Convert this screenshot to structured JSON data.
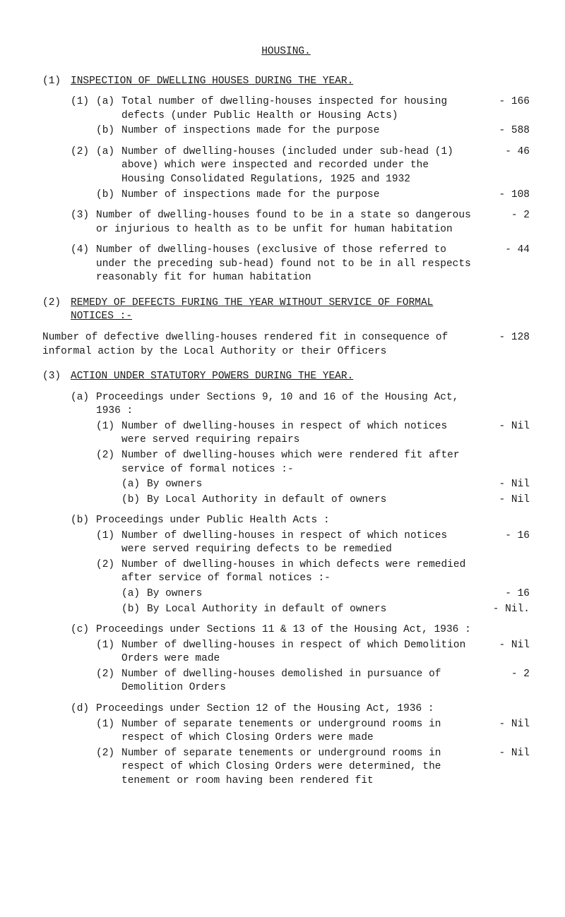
{
  "heading": "HOUSING.",
  "s1": {
    "num": "(1)",
    "title": "INSPECTION OF DWELLING HOUSES DURING THE YEAR.",
    "items": [
      {
        "num": "(1)",
        "a_label": "(a)",
        "a_text": "Total number of dwelling-houses inspected for housing defects (under Public Health or Housing Acts)",
        "a_val": "- 166",
        "b_label": "(b)",
        "b_text": "Number of inspections made for the purpose",
        "b_val": "- 588"
      },
      {
        "num": "(2)",
        "a_label": "(a)",
        "a_text": "Number of dwelling-houses (included under sub-head (1) above) which were inspected and recorded under the Housing Consolidated Regulations, 1925 and 1932",
        "a_val": "-  46",
        "b_label": "(b)",
        "b_text": "Number of inspections made for the purpose",
        "b_val": "- 108"
      },
      {
        "num": "(3)",
        "text": "Number of dwelling-houses found to be in a state so dangerous or injurious to health as to be unfit for human habitation",
        "val": "-   2"
      },
      {
        "num": "(4)",
        "text": "Number of dwelling-houses (exclusive of those referred to under the preceding sub-head) found not to be in all respects reasonably fit for human habitation",
        "val": "-  44"
      }
    ]
  },
  "s2": {
    "num": "(2)",
    "title": "REMEDY OF DEFECTS FURING THE YEAR WITHOUT SERVICE OF FORMAL NOTICES :-",
    "body_text": "Number of defective dwelling-houses rendered fit in consequence of informal action by the Local Authority or their Officers",
    "body_val": "- 128"
  },
  "s3": {
    "num": "(3)",
    "title": "ACTION UNDER STATUTORY POWERS DURING THE YEAR.",
    "a": {
      "label": "(a)",
      "intro": "Proceedings under Sections 9, 10 and 16 of the Housing Act, 1936 :",
      "i1_num": "(1)",
      "i1_text": "Number of dwelling-houses in respect of which notices were served requiring repairs",
      "i1_val": "- Nil",
      "i2_num": "(2)",
      "i2_text": "Number of dwelling-houses which were rendered fit after service of formal notices :-",
      "i2a_label": "(a)",
      "i2a_text": "By owners",
      "i2a_val": "- Nil",
      "i2b_label": "(b)",
      "i2b_text": "By Local Authority in default of owners",
      "i2b_val": "- Nil"
    },
    "b": {
      "label": "(b)",
      "intro": "Proceedings under Public Health Acts :",
      "i1_num": "(1)",
      "i1_text": "Number of dwelling-houses in respect of which notices were served requiring defects to be remedied",
      "i1_val": "-  16",
      "i2_num": "(2)",
      "i2_text": "Number of dwelling-houses in which defects were remedied after service of formal notices :-",
      "i2a_label": "(a)",
      "i2a_text": "By owners",
      "i2a_val": "-  16",
      "i2b_label": "(b)",
      "i2b_text": "By Local Authority in default of owners",
      "i2b_val": "- Nil."
    },
    "c": {
      "label": "(c)",
      "intro": "Proceedings under Sections 11 & 13 of the Housing Act, 1936 :",
      "i1_num": "(1)",
      "i1_text": "Number of dwelling-houses in respect of which Demolition Orders were made",
      "i1_val": "- Nil",
      "i2_num": "(2)",
      "i2_text": "Number of dwelling-houses demolished in pursuance of Demolition Orders",
      "i2_val": "-   2"
    },
    "d": {
      "label": "(d)",
      "intro": "Proceedings under Section 12 of the Housing Act, 1936 :",
      "i1_num": "(1)",
      "i1_text": "Number of separate tenements or underground rooms in respect of which Closing Orders were made",
      "i1_val": "- Nil",
      "i2_num": "(2)",
      "i2_text": "Number of separate tenements or underground rooms in respect of which Closing Orders were determined, the tenement or room having been rendered fit",
      "i2_val": "- Nil"
    }
  }
}
